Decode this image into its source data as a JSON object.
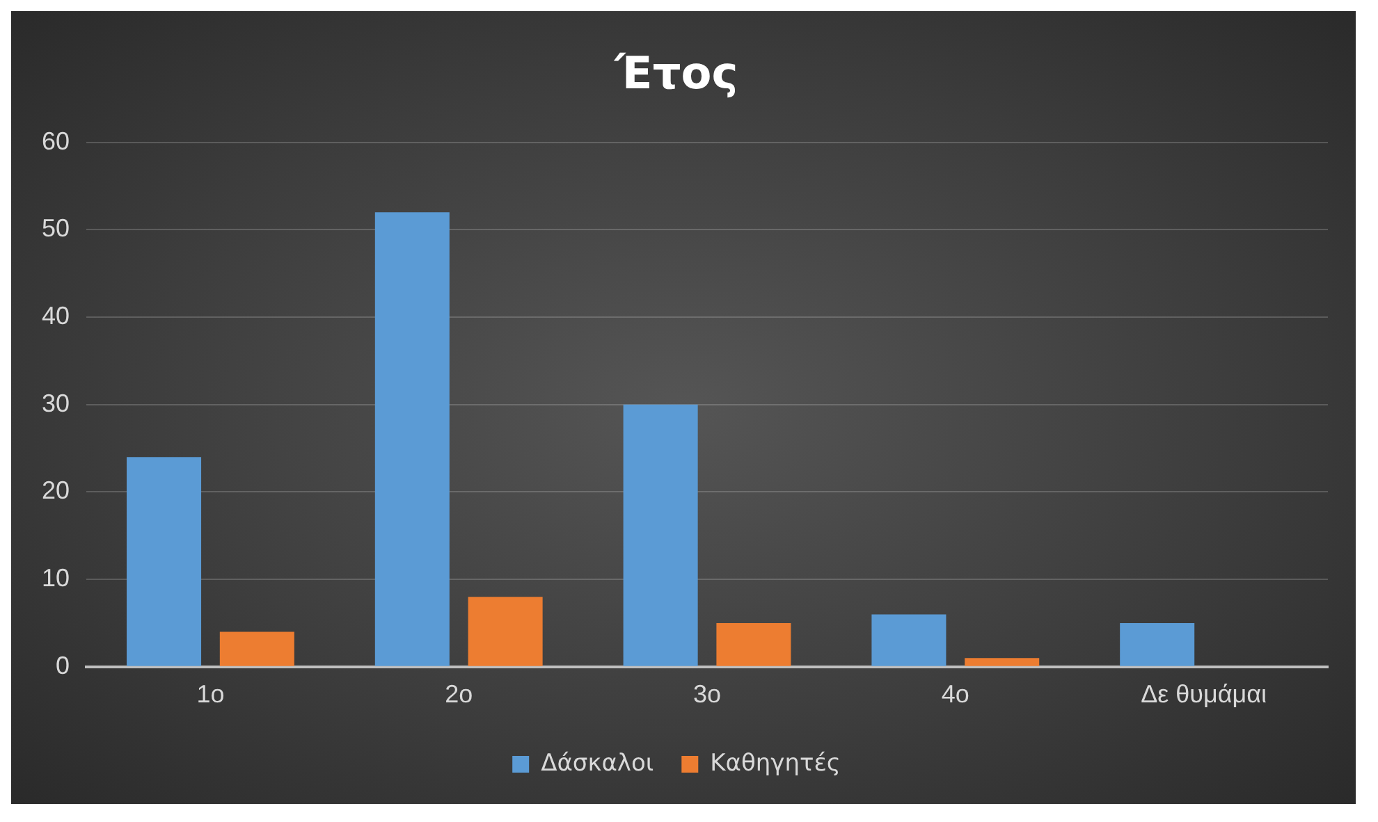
{
  "chart_data": {
    "type": "bar",
    "title": "Έτος",
    "categories": [
      "1ο",
      "2ο",
      "3ο",
      "4ο",
      "Δε θυμάμαι"
    ],
    "series": [
      {
        "name": "Δάσκαλοι",
        "color": "#5b9bd5",
        "values": [
          24,
          52,
          30,
          6,
          5
        ]
      },
      {
        "name": "Καθηγητές",
        "color": "#ed7d31",
        "values": [
          4,
          8,
          5,
          1,
          null
        ]
      }
    ],
    "ylim": [
      0,
      60
    ],
    "yticks": [
      0,
      10,
      20,
      30,
      40,
      50,
      60
    ],
    "grid": "y",
    "legend": "bottom"
  }
}
